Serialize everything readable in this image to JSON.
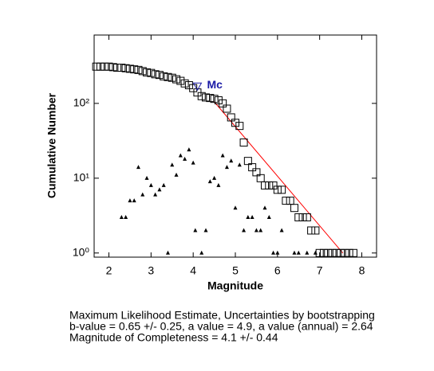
{
  "chart_data": {
    "type": "scatter",
    "xlabel": "Magnitude",
    "ylabel": "Cumulative Number",
    "xlim": [
      1.65,
      8.35
    ],
    "ylim": [
      0.88,
      820
    ],
    "log_y": true,
    "xticks": [
      2,
      3,
      4,
      5,
      6,
      7,
      8
    ],
    "yticks": [
      {
        "value": 1,
        "label": "10⁰"
      },
      {
        "value": 10,
        "label": "10¹"
      },
      {
        "value": 100,
        "label": "10²"
      }
    ],
    "series": [
      {
        "marker": "square",
        "color": "#000000",
        "x": [
          1.7,
          1.8,
          1.9,
          2.0,
          2.1,
          2.2,
          2.3,
          2.4,
          2.5,
          2.6,
          2.7,
          2.8,
          2.9,
          3.0,
          3.1,
          3.2,
          3.3,
          3.4,
          3.5,
          3.6,
          3.7,
          3.8,
          3.9,
          4.0,
          4.1,
          4.2,
          4.3,
          4.4,
          4.5,
          4.6,
          4.7,
          4.8,
          4.9,
          5.0,
          5.1,
          5.2,
          5.3,
          5.4,
          5.5,
          5.6,
          5.7,
          5.8,
          5.9,
          6.0,
          6.1,
          6.2,
          6.3,
          6.4,
          6.5,
          6.6,
          6.7,
          6.8,
          6.9,
          7.0,
          7.1,
          7.2,
          7.3,
          7.4,
          7.5,
          7.6,
          7.7,
          7.8
        ],
        "values": [
          310,
          310,
          310,
          310,
          305,
          300,
          300,
          295,
          290,
          285,
          280,
          270,
          260,
          255,
          245,
          240,
          230,
          225,
          220,
          210,
          200,
          185,
          175,
          160,
          140,
          125,
          120,
          118,
          115,
          110,
          100,
          85,
          65,
          55,
          50,
          30,
          17,
          14,
          12,
          10,
          8,
          8,
          8,
          7,
          7,
          5,
          5,
          4,
          3,
          3,
          3,
          2,
          2,
          1,
          1,
          1,
          1,
          1,
          1,
          1,
          1,
          1
        ]
      },
      {
        "marker": "triangle",
        "color": "#000000",
        "x": [
          2.3,
          2.4,
          2.5,
          2.6,
          2.7,
          2.8,
          2.9,
          3.0,
          3.1,
          3.2,
          3.3,
          3.4,
          3.5,
          3.6,
          3.7,
          3.8,
          3.9,
          4.0,
          4.05,
          4.2,
          4.3,
          4.4,
          4.5,
          4.6,
          4.7,
          4.8,
          4.9,
          5.0,
          5.1,
          5.2,
          5.3,
          5.4,
          5.5,
          5.6,
          5.7,
          5.8,
          5.9,
          6.0,
          6.1,
          6.4,
          6.5,
          6.7,
          6.9
        ],
        "values": [
          3,
          3,
          5,
          5,
          14,
          6,
          10,
          8,
          6,
          7,
          8,
          1,
          15,
          11,
          20,
          18,
          24,
          16,
          2,
          1,
          2,
          9,
          10,
          8,
          20,
          14,
          17,
          4,
          15,
          2,
          3,
          3,
          2,
          2,
          4,
          3,
          1,
          1,
          2,
          1,
          1,
          1,
          1
        ]
      }
    ],
    "fit_line": {
      "color": "#ff0000",
      "x": [
        4.5,
        7.55
      ],
      "values": [
        105,
        1
      ]
    },
    "mc": {
      "label": "Mc",
      "color": "#1a1aa6",
      "x": 4.1,
      "value": 170
    },
    "text_lines": [
      "Maximum Likelihood Estimate, Uncertainties by bootstrapping",
      "b-value = 0.65 +/- 0.25,  a value = 4.9,  a value (annual) = 2.64",
      "Magnitude of Completeness = 4.1 +/- 0.44"
    ]
  }
}
